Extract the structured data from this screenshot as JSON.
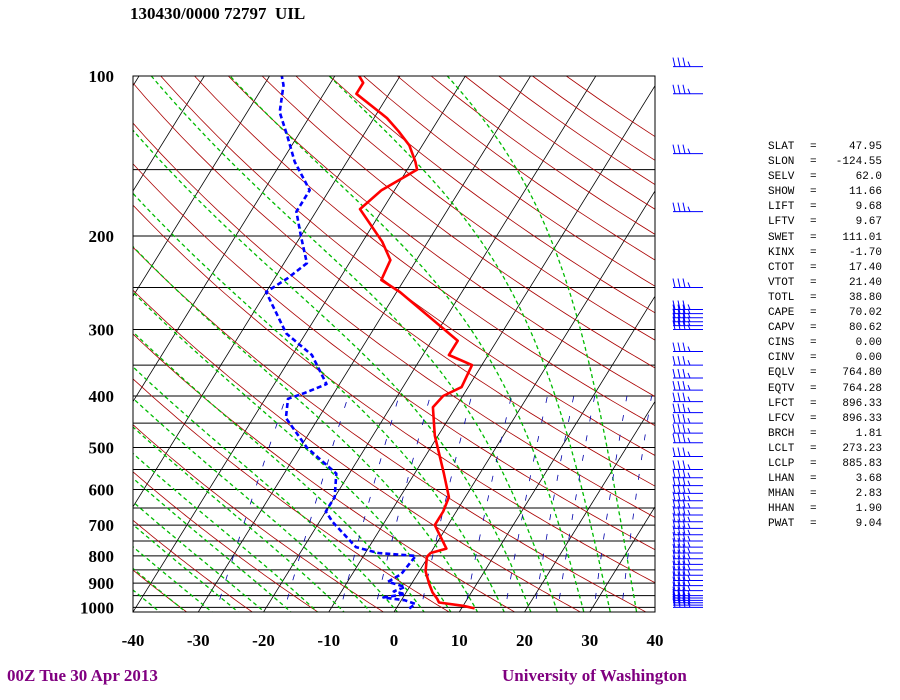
{
  "header": {
    "title": "130430/0000 72797  UIL"
  },
  "footer": {
    "left": "00Z Tue 30 Apr 2013",
    "right": "University of Washington"
  },
  "colors": {
    "temperature": "#ff0000",
    "dewpoint": "#0000ff",
    "wind": "#0000ff",
    "dry_adiabat": "#aa0000",
    "moist_adiabat": "#00bb00",
    "mixing_ratio": "#0000aa",
    "isobar": "#000000",
    "isotherm": "#000000",
    "footer_text": "#800080"
  },
  "indices": [
    {
      "name": "SLAT",
      "value": "47.95"
    },
    {
      "name": "SLON",
      "value": "-124.55"
    },
    {
      "name": "SELV",
      "value": "62.0"
    },
    {
      "name": "SHOW",
      "value": "11.66"
    },
    {
      "name": "LIFT",
      "value": "9.68"
    },
    {
      "name": "LFTV",
      "value": "9.67"
    },
    {
      "name": "SWET",
      "value": "111.01"
    },
    {
      "name": "KINX",
      "value": "-1.70"
    },
    {
      "name": "CTOT",
      "value": "17.40"
    },
    {
      "name": "VTOT",
      "value": "21.40"
    },
    {
      "name": "TOTL",
      "value": "38.80"
    },
    {
      "name": "CAPE",
      "value": "70.02"
    },
    {
      "name": "CAPV",
      "value": "80.62"
    },
    {
      "name": "CINS",
      "value": "0.00"
    },
    {
      "name": "CINV",
      "value": "0.00"
    },
    {
      "name": "EQLV",
      "value": "764.80"
    },
    {
      "name": "EQTV",
      "value": "764.28"
    },
    {
      "name": "LFCT",
      "value": "896.33"
    },
    {
      "name": "LFCV",
      "value": "896.33"
    },
    {
      "name": "BRCH",
      "value": "1.81"
    },
    {
      "name": "LCLT",
      "value": "273.23"
    },
    {
      "name": "LCLP",
      "value": "885.83"
    },
    {
      "name": "LHAN",
      "value": "3.68"
    },
    {
      "name": "MHAN",
      "value": "2.83"
    },
    {
      "name": "HHAN",
      "value": "1.90"
    },
    {
      "name": "PWAT",
      "value": "9.04"
    }
  ],
  "chart_data": {
    "type": "line",
    "x_range": [
      -40,
      40
    ],
    "y_range_hpa": [
      1020,
      100
    ],
    "x_ticks": [
      -40,
      -30,
      -20,
      -10,
      0,
      10,
      20,
      30,
      40
    ],
    "x_tick_labels": [
      "-40",
      "-30",
      "-20",
      "-10",
      "0",
      "10",
      "20",
      "30",
      "40"
    ],
    "y_ticks": [
      1000,
      900,
      800,
      700,
      600,
      500,
      400,
      300,
      200,
      100
    ],
    "y_tick_labels": [
      "1000",
      "900",
      "800",
      "700",
      "600",
      "500",
      "400",
      "300",
      "200",
      "100"
    ],
    "isobars": [
      1000,
      950,
      900,
      850,
      800,
      750,
      700,
      650,
      600,
      550,
      500,
      450,
      400,
      350,
      300,
      250,
      200,
      150,
      100
    ],
    "series": [
      {
        "key": "temperature",
        "style": "solid",
        "points": [
          {
            "p": 1004,
            "t": 12.0
          },
          {
            "p": 993,
            "t": 10.0
          },
          {
            "p": 979,
            "t": 6.0
          },
          {
            "p": 964,
            "t": 5.4
          },
          {
            "p": 936,
            "t": 4.0
          },
          {
            "p": 905,
            "t": 2.8
          },
          {
            "p": 856,
            "t": 1.0
          },
          {
            "p": 803,
            "t": -0.2
          },
          {
            "p": 790,
            "t": 0.0
          },
          {
            "p": 775,
            "t": 2.0
          },
          {
            "p": 700,
            "t": -2.0
          },
          {
            "p": 660,
            "t": -2.0
          },
          {
            "p": 620,
            "t": -2.5
          },
          {
            "p": 560,
            "t": -5.5
          },
          {
            "p": 475,
            "t": -10.5
          },
          {
            "p": 420,
            "t": -13.5
          },
          {
            "p": 400,
            "t": -13.0
          },
          {
            "p": 385,
            "t": -11.0
          },
          {
            "p": 350,
            "t": -11.5
          },
          {
            "p": 335,
            "t": -16.0
          },
          {
            "p": 315,
            "t": -16.0
          },
          {
            "p": 255,
            "t": -29.5
          },
          {
            "p": 242,
            "t": -33.5
          },
          {
            "p": 222,
            "t": -34.0
          },
          {
            "p": 205,
            "t": -37.0
          },
          {
            "p": 178,
            "t": -43.5
          },
          {
            "p": 164,
            "t": -42.0
          },
          {
            "p": 150,
            "t": -38.5
          },
          {
            "p": 145,
            "t": -39.5
          },
          {
            "p": 135,
            "t": -42.0
          },
          {
            "p": 127,
            "t": -45.0
          },
          {
            "p": 120,
            "t": -48.0
          },
          {
            "p": 108,
            "t": -55.0
          },
          {
            "p": 103,
            "t": -55.0
          },
          {
            "p": 96,
            "t": -58.0
          }
        ]
      },
      {
        "key": "dewpoint",
        "style": "dashed",
        "points": [
          {
            "p": 1004,
            "t": 2.0
          },
          {
            "p": 985,
            "t": 2.5
          },
          {
            "p": 969,
            "t": 0.5
          },
          {
            "p": 958,
            "t": -3.0
          },
          {
            "p": 944,
            "t": 0.0
          },
          {
            "p": 933,
            "t": -2.0
          },
          {
            "p": 915,
            "t": -0.7
          },
          {
            "p": 895,
            "t": -3.8
          },
          {
            "p": 865,
            "t": -2.5
          },
          {
            "p": 800,
            "t": -2.0
          },
          {
            "p": 790,
            "t": -8.0
          },
          {
            "p": 780,
            "t": -10.0
          },
          {
            "p": 770,
            "t": -12.0
          },
          {
            "p": 690,
            "t": -18.0
          },
          {
            "p": 660,
            "t": -20.0
          },
          {
            "p": 620,
            "t": -20.0
          },
          {
            "p": 560,
            "t": -22.0
          },
          {
            "p": 500,
            "t": -29.0
          },
          {
            "p": 440,
            "t": -35.0
          },
          {
            "p": 405,
            "t": -36.5
          },
          {
            "p": 395,
            "t": -34.5
          },
          {
            "p": 380,
            "t": -32.0
          },
          {
            "p": 335,
            "t": -37.0
          },
          {
            "p": 305,
            "t": -43.0
          },
          {
            "p": 255,
            "t": -50.0
          },
          {
            "p": 240,
            "t": -48.0
          },
          {
            "p": 225,
            "t": -46.5
          },
          {
            "p": 200,
            "t": -50.0
          },
          {
            "p": 180,
            "t": -53.0
          },
          {
            "p": 164,
            "t": -53.0
          },
          {
            "p": 145,
            "t": -58.0
          },
          {
            "p": 130,
            "t": -61.5
          },
          {
            "p": 117,
            "t": -65.0
          },
          {
            "p": 104,
            "t": -67.0
          },
          {
            "p": 97,
            "t": -69.0
          }
        ]
      }
    ],
    "wind_levels": [
      1000,
      990,
      980,
      970,
      960,
      950,
      930,
      910,
      890,
      870,
      850,
      830,
      810,
      790,
      770,
      750,
      730,
      710,
      690,
      670,
      650,
      630,
      610,
      590,
      570,
      550,
      520,
      490,
      470,
      450,
      430,
      410,
      390,
      370,
      350,
      330,
      300,
      295,
      290,
      285,
      280,
      275,
      250,
      180,
      140,
      108,
      96
    ]
  }
}
